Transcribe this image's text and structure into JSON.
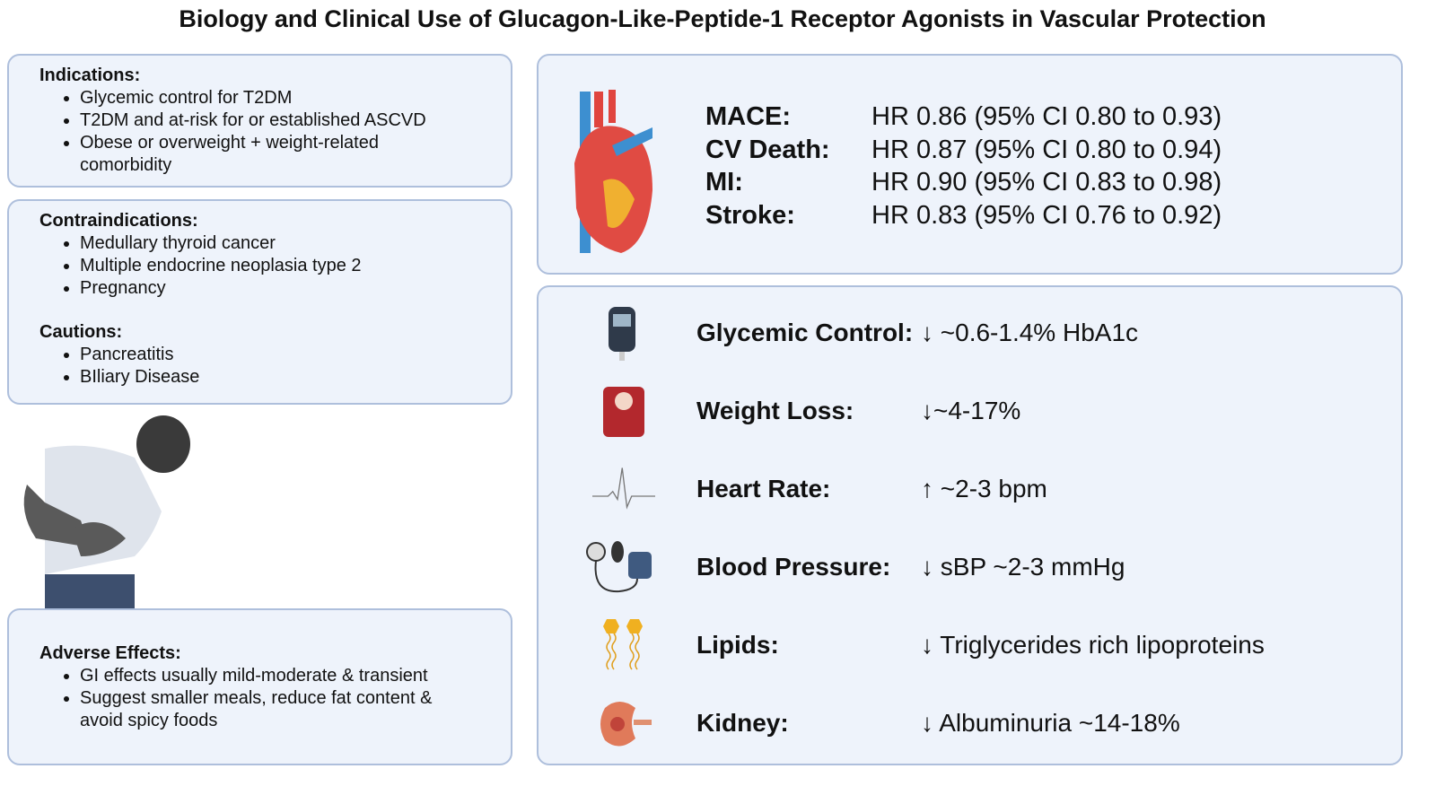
{
  "title": "Biology and Clinical Use of Glucagon-Like-Peptide-1 Receptor Agonists in Vascular Protection",
  "indications": {
    "heading": "Indications:",
    "items": [
      "Glycemic control for T2DM",
      "T2DM and at-risk for or established ASCVD",
      "Obese or overweight +  weight-related comorbidity"
    ]
  },
  "contraindications": {
    "heading": "Contraindications:",
    "items": [
      "Medullary thyroid cancer",
      "Multiple endocrine neoplasia type 2",
      "Pregnancy"
    ]
  },
  "cautions": {
    "heading": "Cautions:",
    "items": [
      "Pancreatitis",
      "BIliary Disease"
    ]
  },
  "adverse": {
    "heading": "Adverse Effects:",
    "items": [
      "GI effects usually mild-moderate & transient",
      "Suggest smaller meals, reduce fat content & avoid spicy foods"
    ]
  },
  "outcomes": [
    {
      "label": "MACE:",
      "value": "HR 0.86 (95% CI 0.80 to 0.93)"
    },
    {
      "label": "CV Death:",
      "value": "HR 0.87 (95% CI 0.80 to 0.94)"
    },
    {
      "label": "MI:",
      "value": "HR 0.90 (95% CI 0.83 to 0.98)"
    },
    {
      "label": "Stroke:",
      "value": "HR 0.83 (95% CI 0.76 to 0.92)"
    }
  ],
  "effects": [
    {
      "label": "Glycemic Control:",
      "value": "↓ ~0.6-1.4% HbA1c",
      "icon": "glucometer-icon"
    },
    {
      "label": "Weight Loss:",
      "value": "↓~4-17%",
      "icon": "scale-icon"
    },
    {
      "label": "Heart Rate:",
      "value": "↑ ~2-3  bpm",
      "icon": "ecg-icon"
    },
    {
      "label": "Blood Pressure:",
      "value": "↓ sBP  ~2-3 mmHg",
      "icon": "sphygmomanometer-icon"
    },
    {
      "label": "Lipids:",
      "value": "↓ Triglycerides rich lipoproteins",
      "icon": "lipid-icon"
    },
    {
      "label": "Kidney:",
      "value": "↓ Albuminuria ~14-18%",
      "icon": "kidney-icon"
    }
  ]
}
